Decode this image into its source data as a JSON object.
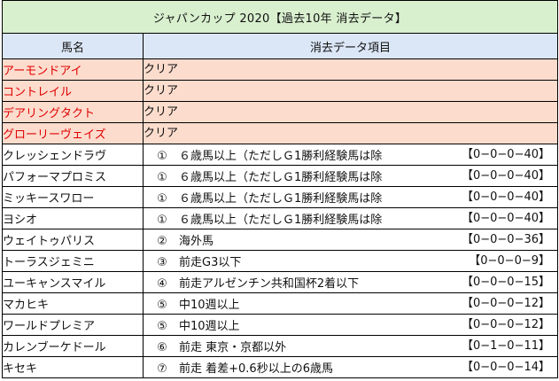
{
  "title": "ジャパンカップ 2020【過去10年 消去データ】",
  "headers": {
    "horse": "馬名",
    "data": "消去データ項目"
  },
  "colors": {
    "title_bg": "#d9f0cf",
    "header_bg": "#dbe7f6",
    "clear_bg": "#fcdccd",
    "red_text": "#e00000"
  },
  "clear_rows": [
    {
      "name": "アーモンドアイ",
      "status": "クリア"
    },
    {
      "name": "コントレイル",
      "status": "クリア"
    },
    {
      "name": "デアリングタクト",
      "status": "クリア"
    },
    {
      "name": "グローリーヴェイズ",
      "status": "クリア"
    }
  ],
  "eliminated_rows": [
    {
      "name": "クレッシェンドラヴ",
      "num": "①",
      "condition": "６歳馬以上（ただしＧ1勝利経験馬は除",
      "result": "【0−0−0−40】"
    },
    {
      "name": "パフォーマプロミス",
      "num": "①",
      "condition": "６歳馬以上（ただしＧ1勝利経験馬は除",
      "result": "【0−0−0−40】"
    },
    {
      "name": "ミッキースワロー",
      "num": "①",
      "condition": "６歳馬以上（ただしＧ1勝利経験馬は除",
      "result": "【0−0−0−40】"
    },
    {
      "name": "ヨシオ",
      "num": "①",
      "condition": "６歳馬以上（ただしＧ1勝利経験馬は除",
      "result": "【0−0−0−40】"
    },
    {
      "name": "ウェイトゥパリス",
      "num": "②",
      "condition": "海外馬",
      "result": "【0−0−0−36】"
    },
    {
      "name": "トーラスジェミニ",
      "num": "③",
      "condition": "前走G3以下",
      "result": "【0−0−0−9】"
    },
    {
      "name": "ユーキャンスマイル",
      "num": "④",
      "condition": "前走アルゼンチン共和国杯2着以下",
      "result": "【0−0−0−15】"
    },
    {
      "name": "マカヒキ",
      "num": "⑤",
      "condition": "中10週以上",
      "result": "【0−0−0−12】"
    },
    {
      "name": "ワールドプレミア",
      "num": "⑤",
      "condition": "中10週以上",
      "result": "【0−0−0−12】"
    },
    {
      "name": "カレンブーケドール",
      "num": "⑥",
      "condition": "前走 東京・京都以外",
      "result": "【0−1−0−11】"
    },
    {
      "name": "キセキ",
      "num": "⑦",
      "condition": "前走 着差+0.6秒以上の6歳馬",
      "result": "【0−0−0−14】"
    }
  ]
}
